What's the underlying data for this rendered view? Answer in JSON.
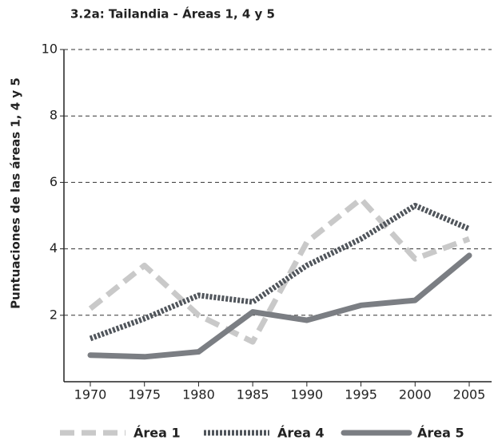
{
  "chart_data": {
    "type": "line",
    "title": "3.2a: Tailandia - Áreas 1, 4 y 5",
    "y_label": "Puntuaciones de las áreas 1, 4 y 5",
    "categories": [
      "1970",
      "1975",
      "1980",
      "1985",
      "1990",
      "1995",
      "2000",
      "2005"
    ],
    "series": [
      {
        "name": "Área 1",
        "color": "#c9c9c9",
        "style": "dashed",
        "values": [
          2.2,
          3.5,
          2.0,
          1.2,
          4.2,
          5.5,
          3.7,
          4.3
        ]
      },
      {
        "name": "Área 4",
        "color": "#50555b",
        "style": "dotted",
        "values": [
          1.3,
          1.9,
          2.6,
          2.4,
          3.5,
          4.3,
          5.3,
          4.6
        ]
      },
      {
        "name": "Área 5",
        "color": "#7b7e83",
        "style": "solid",
        "values": [
          0.8,
          0.75,
          0.9,
          2.1,
          1.85,
          2.3,
          2.45,
          3.8
        ]
      }
    ],
    "ylim": [
      0,
      10
    ],
    "yticks": [
      2,
      4,
      6,
      8,
      10
    ],
    "grid": true
  }
}
